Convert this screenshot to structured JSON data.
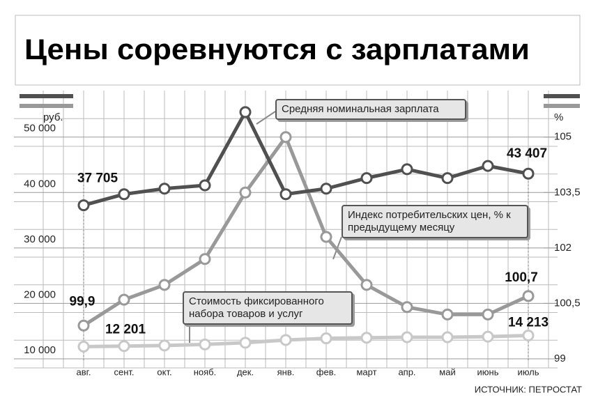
{
  "chart_data": {
    "type": "line",
    "title": "Цены соревнуются с зарплатами",
    "y_label": "руб.",
    "y2_label": "%",
    "source": "ИСТОЧНИК: ПЕТРОСТАТ",
    "categories": [
      "авг.",
      "сент.",
      "окт.",
      "нояб.",
      "дек.",
      "янв.",
      "фев.",
      "март",
      "апр.",
      "май",
      "июнь",
      "июль"
    ],
    "ylim": [
      10000,
      56000
    ],
    "yticks": [
      {
        "value": 10000,
        "label": "10 000"
      },
      {
        "value": 20000,
        "label": "20 000"
      },
      {
        "value": 30000,
        "label": "30 000"
      },
      {
        "value": 40000,
        "label": "40 000"
      },
      {
        "value": 50000,
        "label": "50 000"
      }
    ],
    "y2lim": [
      99,
      105.9
    ],
    "y2ticks": [
      99,
      {
        "value": 100.5,
        "label": "100,5"
      },
      102,
      {
        "value": 103.5,
        "label": "103,5"
      },
      105
    ],
    "grid": true,
    "series": [
      {
        "name": "Средняя номинальная зарплата",
        "color": "#505050",
        "values": [
          37705,
          39700,
          40700,
          41300,
          54500,
          39700,
          40700,
          42600,
          44200,
          42600,
          44800,
          43407
        ],
        "value_labels": [
          "37 705",
          null,
          null,
          null,
          null,
          null,
          null,
          null,
          null,
          null,
          null,
          "43 407"
        ]
      },
      {
        "name": "Индекс потребительских цен, % к предыдущему месяцу",
        "color": "#999999",
        "axis": "y2",
        "values": [
          99.9,
          100.6,
          101.0,
          101.7,
          103.5,
          105.0,
          102.3,
          101.0,
          100.4,
          100.2,
          100.2,
          100.7
        ],
        "value_labels": [
          "99,9",
          null,
          null,
          null,
          null,
          null,
          null,
          null,
          null,
          null,
          null,
          "100,7"
        ]
      },
      {
        "name": "Стоимость фиксированного набора товаров и услуг",
        "color": "#c8c8c8",
        "values": [
          12201,
          12300,
          12400,
          12600,
          12900,
          13400,
          13700,
          13800,
          13900,
          13900,
          14000,
          14213
        ],
        "value_labels": [
          "12 201",
          null,
          null,
          null,
          null,
          null,
          null,
          null,
          null,
          null,
          null,
          "14 213"
        ]
      }
    ]
  }
}
